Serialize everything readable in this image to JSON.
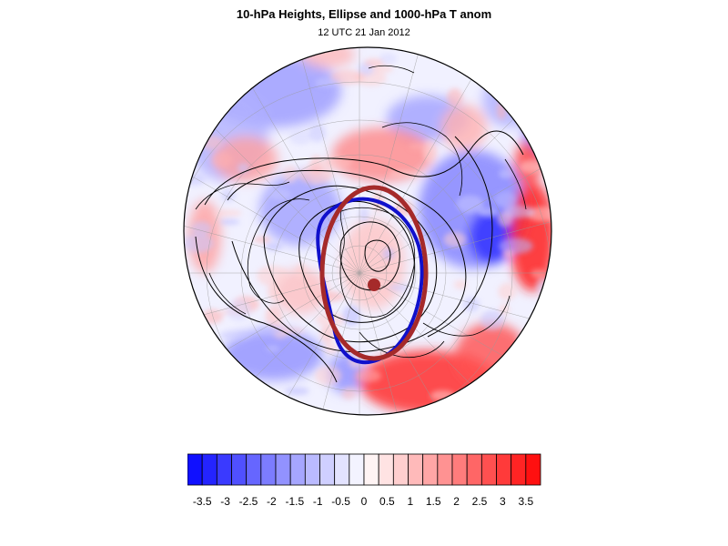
{
  "header": {
    "title": "10-hPa Heights, Ellipse and 1000-hPa T anom",
    "subtitle": "12 UTC 21 Jan 2012"
  },
  "colorbar": {
    "labels": [
      "-3.5",
      "-3",
      "-2.5",
      "-2",
      "-1.5",
      "-1",
      "-0.5",
      "0",
      "0.5",
      "1",
      "1.5",
      "2",
      "2.5",
      "3",
      "3.5"
    ],
    "colors": [
      "#1010ff",
      "#2424ff",
      "#3a3aff",
      "#5050ff",
      "#6666ff",
      "#7c7cff",
      "#9292ff",
      "#a6a6ff",
      "#babaff",
      "#cfcfff",
      "#e3e3ff",
      "#f3f3ff",
      "#fff4f4",
      "#ffe3e3",
      "#ffcfcf",
      "#ffbaba",
      "#ffa6a6",
      "#ff9292",
      "#ff7c7c",
      "#ff6666",
      "#ff5050",
      "#ff3a3a",
      "#ff2424",
      "#ff1010"
    ]
  },
  "map": {
    "projection": "north-polar-orthographic",
    "ellipse_color": "#a52a2a",
    "blue_contour_color": "#1010cc",
    "height_contour_color": "#000000"
  }
}
